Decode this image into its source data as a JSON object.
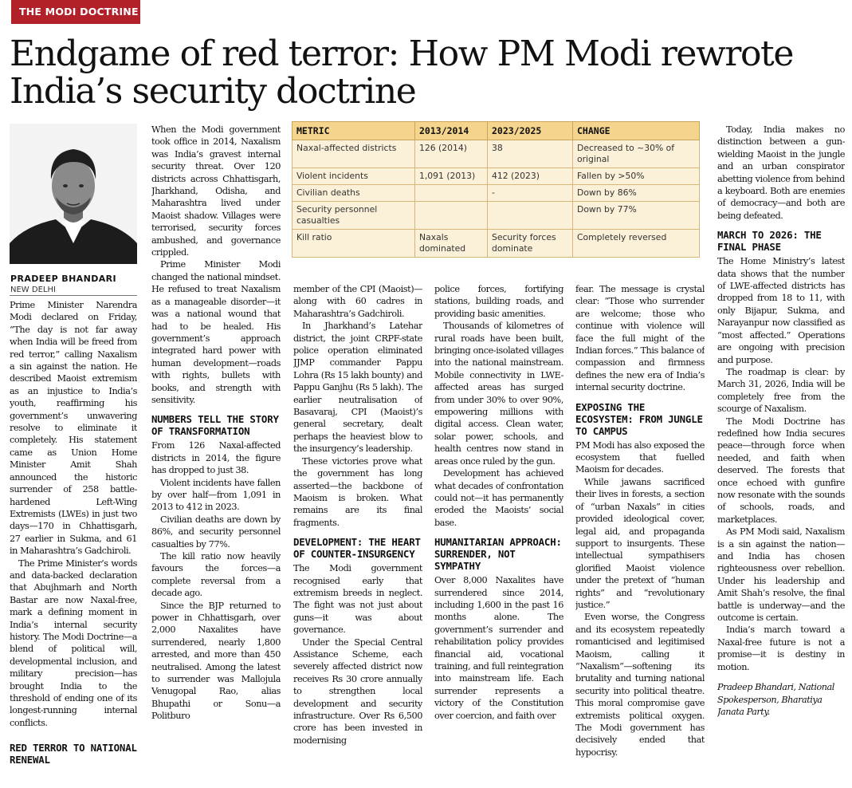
{
  "section_tag": "THE MODI DOCTRINE",
  "headline": "Endgame of red terror: How PM Modi rewrote India’s security doctrine",
  "author": {
    "name": "PRADEEP BHANDARI",
    "place": "NEW DELHI"
  },
  "table": {
    "headers": [
      "METRIC",
      "2013/2014",
      "2023/2025",
      "CHANGE"
    ],
    "rows": [
      [
        "Naxal-affected districts",
        "126 (2014)",
        "38",
        "Decreased to ~30% of original"
      ],
      [
        "Violent incidents",
        "1,091 (2013)",
        "412 (2023)",
        "Fallen by >50%"
      ],
      [
        "Civilian deaths",
        "",
        "-",
        "Down by 86%"
      ],
      [
        "Security personnel casualties",
        "",
        "",
        "Down by 77%"
      ],
      [
        "Kill ratio",
        "Naxals dominated",
        "Security forces dominate",
        "Completely reversed"
      ]
    ]
  },
  "col1": {
    "p1": "Prime Minister Narendra Modi declared on Friday, “The day is not far away when India will be freed from red terror,” calling Naxalism a sin against the nation. He described Maoist extremism as an injustice to India’s youth, reaffirming his government’s unwavering resolve to eliminate it completely. His statement came as Union Home Minister Amit Shah announced the historic surrender of 258 battle-hardened Left-Wing Extremists (LWEs) in just two days—170 in Chhattisgarh, 27 earlier in Sukma, and 61 in Maharashtra’s Gadchiroli.",
    "p2": "The Prime Minister’s words and data-backed declaration that Abujhmarh and North Bastar are now Naxal-free, mark a defining moment in India’s internal security history. The Modi Doctrine—a blend of political will, developmental inclusion, and military precision—has brought India to the threshold of ending one of its longest-running internal conflicts.",
    "h1": "RED TERROR TO NATIONAL RENEWAL"
  },
  "col2": {
    "p1": "When the Modi government took office in 2014, Naxalism was India’s gravest internal security threat. Over 120 districts across Chhattisgarh, Jharkhand, Odisha, and Maharashtra lived under Maoist shadow. Villages were terrorised, security forces ambushed, and governance crippled.",
    "p2": "Prime Minister Modi changed the national mindset. He refused to treat Naxalism as a manageable disorder—it was a national wound that had to be healed. His government’s approach integrated hard power with human development—roads with rights, bullets with books, and strength with sensitivity.",
    "h1": "NUMBERS TELL THE STORY OF TRANSFORMATION",
    "p3": "From 126 Naxal-affected districts in 2014, the figure has dropped to just 38.",
    "p4": "Violent incidents have fallen by over half—from 1,091 in 2013 to 412 in 2023.",
    "p5": "Civilian deaths are down by 86%, and security personnel casualties by 77%.",
    "p6": "The kill ratio now heavily favours the forces—a complete reversal from a decade ago.",
    "p7": "Since the BJP returned to power in Chhattisgarh, over 2,000 Naxalites have surrendered, nearly 1,800 arrested, and more than 450 neutralised. Among the latest to surrender was Mallojula Venugopal Rao, alias Bhupathi or Sonu—a Politburo"
  },
  "col3": {
    "p1": "member of the CPI (Maoist)—along with 60 cadres in Maharashtra’s Gadchiroli.",
    "p2": "In Jharkhand’s Latehar district, the joint CRPF-state police operation eliminated JJMP commander Pappu Lohra (Rs 15 lakh bounty) and Pappu Ganjhu (Rs 5 lakh). The earlier neutralisation of Basavaraj, CPI (Maoist)’s general secretary, dealt perhaps the heaviest blow to the insurgency’s leadership.",
    "p3": "These victories prove what the government has long asserted—the backbone of Maoism is broken. What remains are its final fragments.",
    "h1": "DEVELOPMENT: THE HEART OF COUNTER-INSURGENCY",
    "p4": "The Modi government recognised early that extremism breeds in neglect. The fight was not just about guns—it was about governance.",
    "p5": "Under the Special Central Assistance Scheme, each severely affected district now receives Rs 30 crore annually to strengthen local development and security infrastructure. Over Rs 6,500 crore has been invested in modernising"
  },
  "col4": {
    "p1": "police forces, fortifying stations, building roads, and providing basic amenities.",
    "p2": "Thousands of kilometres of rural roads have been built, bringing once-isolated villages into the national mainstream. Mobile connectivity in LWE-affected areas has surged from under 30% to over 90%, empowering millions with digital access. Clean water, solar power, schools, and health centres now stand in areas once ruled by the gun.",
    "p3": "Development has achieved what decades of confrontation could not—it has permanently eroded the Maoists’ social base.",
    "h1": "HUMANITARIAN APPROACH: SURRENDER, NOT SYMPATHY",
    "p4": "Over 8,000 Naxalites have surrendered since 2014, including 1,600 in the past 16 months alone. The government’s surrender and rehabilitation policy provides financial aid, vocational training, and full reintegration into mainstream life. Each surrender represents a victory of the Constitution over coercion, and faith over"
  },
  "col5": {
    "p1": "fear. The message is crystal clear: “Those who surrender are welcome; those who continue with violence will face the full might of the Indian forces.” This balance of compassion and firmness defines the new era of India’s internal security doctrine.",
    "h1": "EXPOSING THE ECOSYSTEM: FROM JUNGLE TO CAMPUS",
    "p2": "PM Modi has also exposed the ecosystem that fuelled Maoism for decades.",
    "p3": "While jawans sacrificed their lives in forests, a section of “urban Naxals” in cities provided ideological cover, legal aid, and propaganda support to insurgents. These intellectual sympathisers glorified Maoist violence under the pretext of “human rights” and “revolutionary justice.”",
    "p4": "Even worse, the Congress and its ecosystem repeatedly romanticised and legitimised Maoism, calling it “Naxalism”—softening its brutality and turning national security into political theatre. This moral compromise gave extremists political oxygen. The Modi government has decisively ended that hypocrisy."
  },
  "col6": {
    "p1": "Today, India makes no distinction between a gun-wielding Maoist in the jungle and an urban conspirator abetting violence from behind a keyboard. Both are enemies of democracy—and both are being defeated.",
    "h1": "MARCH TO 2026: THE FINAL PHASE",
    "p2": "The Home Ministry’s latest data shows that the number of LWE-affected districts has dropped from 18 to 11, with only Bijapur, Sukma, and Narayanpur now classified as “most affected.” Operations are ongoing with precision and purpose.",
    "p3": "The roadmap is clear: by March 31, 2026, India will be completely free from the scourge of Naxalism.",
    "p4": "The Modi Doctrine has redefined how India secures peace—through force when needed, and faith when deserved. The forests that once echoed with gunfire now resonate with the sounds of schools, roads, and marketplaces.",
    "p5": "As PM Modi said, Naxalism is a sin against the nation—and India has chosen righteousness over rebellion. Under his leadership and Amit Shah’s resolve, the final battle is underway—and the outcome is certain.",
    "p6": "India’s march toward a Naxal-free future is not a promise—it is destiny in motion.",
    "sign": "Pradeep Bhandari, National Spokesperson, Bharatiya Janata Party."
  }
}
